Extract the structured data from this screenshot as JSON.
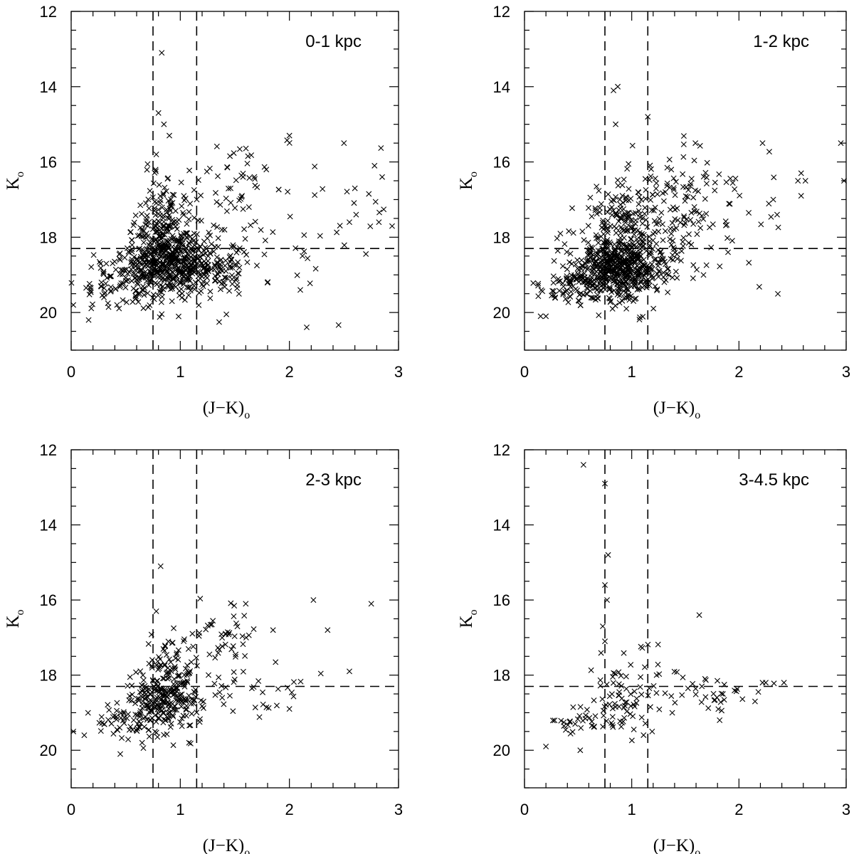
{
  "chart_data": [
    {
      "type": "scatter",
      "label": "0-1 kpc",
      "xlabel": "(J−K)",
      "xlabel_sub": "o",
      "ylabel": "K",
      "ylabel_sub": "o",
      "xlim": [
        0,
        3
      ],
      "ylim": [
        21,
        12
      ],
      "y_inverted": true,
      "x_ticks": [
        0,
        1,
        2,
        3
      ],
      "y_ticks": [
        12,
        14,
        16,
        18,
        20
      ],
      "marker": "x",
      "ref_lines": {
        "x": [
          0.75,
          1.15
        ],
        "y": [
          18.3
        ]
      },
      "clusters": [
        {
          "cx": 0.9,
          "cy": 18.7,
          "sx": 0.22,
          "sy": 0.45,
          "n": 520
        },
        {
          "cx": 0.85,
          "cy": 17.6,
          "sx": 0.12,
          "sy": 0.6,
          "n": 140
        },
        {
          "cx": 0.45,
          "cy": 19.3,
          "sx": 0.2,
          "sy": 0.35,
          "n": 80
        },
        {
          "cx": 1.35,
          "cy": 18.9,
          "sx": 0.2,
          "sy": 0.35,
          "n": 70
        },
        {
          "cx": 1.5,
          "cy": 16.6,
          "sx": 0.28,
          "sy": 0.5,
          "n": 55
        },
        {
          "cx": 2.2,
          "cy": 18.0,
          "sx": 0.4,
          "sy": 1.1,
          "n": 35
        }
      ],
      "points": [
        {
          "x": 0.83,
          "y": 13.1
        },
        {
          "x": 0.8,
          "y": 14.7
        },
        {
          "x": 0.85,
          "y": 15.0
        },
        {
          "x": 0.9,
          "y": 15.3
        },
        {
          "x": 0.78,
          "y": 15.8
        },
        {
          "x": 2.0,
          "y": 15.3
        },
        {
          "x": 2.5,
          "y": 15.5
        },
        {
          "x": 2.78,
          "y": 16.1
        },
        {
          "x": 2.85,
          "y": 16.4
        },
        {
          "x": 2.6,
          "y": 16.7
        },
        {
          "x": 2.82,
          "y": 17.6
        },
        {
          "x": 2.55,
          "y": 17.6
        },
        {
          "x": 2.1,
          "y": 19.4
        },
        {
          "x": 0.02,
          "y": 19.8
        },
        {
          "x": 0.16,
          "y": 20.2
        }
      ]
    },
    {
      "type": "scatter",
      "label": "1-2 kpc",
      "xlabel": "(J−K)",
      "xlabel_sub": "o",
      "ylabel": "K",
      "ylabel_sub": "o",
      "xlim": [
        0,
        3
      ],
      "ylim": [
        21,
        12
      ],
      "y_inverted": true,
      "x_ticks": [
        0,
        1,
        2,
        3
      ],
      "y_ticks": [
        12,
        14,
        16,
        18,
        20
      ],
      "marker": "x",
      "ref_lines": {
        "x": [
          0.75,
          1.15
        ],
        "y": [
          18.3
        ]
      },
      "clusters": [
        {
          "cx": 0.85,
          "cy": 18.8,
          "sx": 0.2,
          "sy": 0.4,
          "n": 520
        },
        {
          "cx": 0.9,
          "cy": 17.6,
          "sx": 0.15,
          "sy": 0.5,
          "n": 140
        },
        {
          "cx": 0.45,
          "cy": 19.3,
          "sx": 0.18,
          "sy": 0.3,
          "n": 80
        },
        {
          "cx": 1.35,
          "cy": 17.8,
          "sx": 0.22,
          "sy": 0.8,
          "n": 90
        },
        {
          "cx": 1.5,
          "cy": 16.8,
          "sx": 0.25,
          "sy": 0.6,
          "n": 60
        },
        {
          "cx": 2.0,
          "cy": 17.2,
          "sx": 0.4,
          "sy": 0.9,
          "n": 25
        }
      ],
      "points": [
        {
          "x": 0.87,
          "y": 14.0
        },
        {
          "x": 0.83,
          "y": 14.1
        },
        {
          "x": 1.15,
          "y": 14.8
        },
        {
          "x": 0.85,
          "y": 15.0
        },
        {
          "x": 2.22,
          "y": 15.5
        },
        {
          "x": 2.95,
          "y": 15.5
        },
        {
          "x": 2.58,
          "y": 16.3
        },
        {
          "x": 2.62,
          "y": 16.5
        },
        {
          "x": 2.98,
          "y": 16.5
        },
        {
          "x": 2.55,
          "y": 16.5
        },
        {
          "x": 2.58,
          "y": 16.9
        },
        {
          "x": 2.32,
          "y": 17.0
        },
        {
          "x": 0.15,
          "y": 20.1
        },
        {
          "x": 0.2,
          "y": 20.1
        },
        {
          "x": 0.95,
          "y": 19.9
        }
      ]
    },
    {
      "type": "scatter",
      "label": "2-3 kpc",
      "xlabel": "(J−K)",
      "xlabel_sub": "o",
      "ylabel": "K",
      "ylabel_sub": "o",
      "xlim": [
        0,
        3
      ],
      "ylim": [
        21,
        12
      ],
      "y_inverted": true,
      "x_ticks": [
        0,
        1,
        2,
        3
      ],
      "y_ticks": [
        12,
        14,
        16,
        18,
        20
      ],
      "marker": "x",
      "ref_lines": {
        "x": [
          0.75,
          1.15
        ],
        "y": [
          18.3
        ]
      },
      "clusters": [
        {
          "cx": 0.85,
          "cy": 18.7,
          "sx": 0.16,
          "sy": 0.4,
          "n": 230
        },
        {
          "cx": 0.95,
          "cy": 17.8,
          "sx": 0.13,
          "sy": 0.45,
          "n": 70
        },
        {
          "cx": 0.5,
          "cy": 19.2,
          "sx": 0.15,
          "sy": 0.25,
          "n": 45
        },
        {
          "cx": 1.4,
          "cy": 17.0,
          "sx": 0.15,
          "sy": 0.45,
          "n": 40
        },
        {
          "cx": 1.6,
          "cy": 18.5,
          "sx": 0.3,
          "sy": 0.3,
          "n": 35
        }
      ],
      "points": [
        {
          "x": 0.82,
          "y": 15.1
        },
        {
          "x": 0.78,
          "y": 16.3
        },
        {
          "x": 2.22,
          "y": 16.0
        },
        {
          "x": 2.75,
          "y": 16.1
        },
        {
          "x": 2.35,
          "y": 16.8
        },
        {
          "x": 2.55,
          "y": 17.9
        },
        {
          "x": 1.85,
          "y": 16.8
        },
        {
          "x": 1.6,
          "y": 16.1
        },
        {
          "x": 0.02,
          "y": 19.5
        },
        {
          "x": 0.12,
          "y": 19.6
        },
        {
          "x": 0.45,
          "y": 20.1
        },
        {
          "x": 0.65,
          "y": 19.8
        },
        {
          "x": 1.08,
          "y": 19.8
        },
        {
          "x": 2.0,
          "y": 18.9
        }
      ]
    },
    {
      "type": "scatter",
      "label": "3-4.5 kpc",
      "xlabel": "(J−K)",
      "xlabel_sub": "o",
      "ylabel": "K",
      "ylabel_sub": "o",
      "xlim": [
        0,
        3
      ],
      "ylim": [
        21,
        12
      ],
      "y_inverted": true,
      "x_ticks": [
        0,
        1,
        2,
        3
      ],
      "y_ticks": [
        12,
        14,
        16,
        18,
        20
      ],
      "marker": "x",
      "ref_lines": {
        "x": [
          0.75,
          1.15
        ],
        "y": [
          18.3
        ]
      },
      "clusters": [
        {
          "cx": 0.85,
          "cy": 18.7,
          "sx": 0.15,
          "sy": 0.45,
          "n": 65
        },
        {
          "cx": 0.45,
          "cy": 19.2,
          "sx": 0.12,
          "sy": 0.2,
          "n": 22
        },
        {
          "cx": 1.2,
          "cy": 18.3,
          "sx": 0.15,
          "sy": 0.6,
          "n": 28
        },
        {
          "cx": 1.75,
          "cy": 18.6,
          "sx": 0.25,
          "sy": 0.25,
          "n": 30
        }
      ],
      "points": [
        {
          "x": 0.55,
          "y": 12.4
        },
        {
          "x": 0.75,
          "y": 12.9
        },
        {
          "x": 0.78,
          "y": 14.8
        },
        {
          "x": 0.75,
          "y": 15.6
        },
        {
          "x": 0.77,
          "y": 16.0
        },
        {
          "x": 1.63,
          "y": 16.4
        },
        {
          "x": 0.73,
          "y": 16.7
        },
        {
          "x": 0.75,
          "y": 17.1
        },
        {
          "x": 2.22,
          "y": 18.2
        },
        {
          "x": 2.42,
          "y": 18.2
        },
        {
          "x": 2.25,
          "y": 18.2
        },
        {
          "x": 2.15,
          "y": 18.7
        },
        {
          "x": 0.2,
          "y": 19.9
        },
        {
          "x": 0.52,
          "y": 20.0
        },
        {
          "x": 1.82,
          "y": 19.2
        }
      ]
    }
  ]
}
